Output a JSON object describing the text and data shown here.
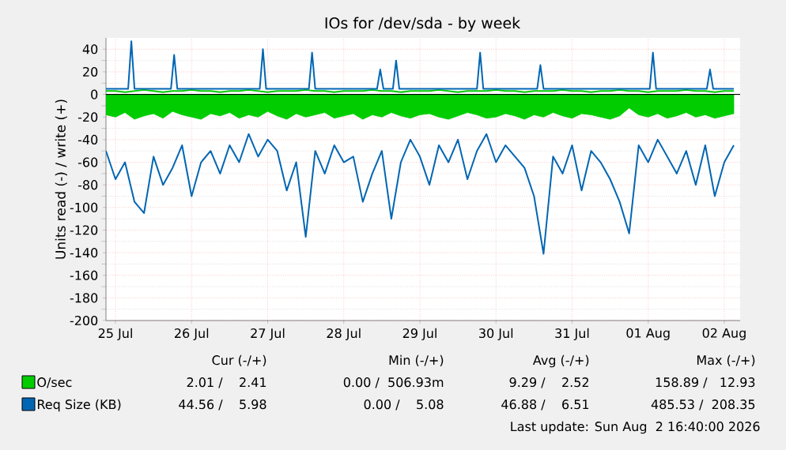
{
  "chart_data": {
    "type": "line",
    "title": "IOs for /dev/sda - by week",
    "ylabel": "Units read (-) / write (+)",
    "x": [
      "2026-07-25T09:00",
      "2026-07-25T12:00",
      "2026-07-25T15:00",
      "2026-07-25T18:00",
      "2026-07-25T21:00",
      "2026-07-26T00:00",
      "2026-07-26T03:00",
      "2026-07-26T06:00",
      "2026-07-26T09:00",
      "2026-07-26T12:00",
      "2026-07-26T15:00",
      "2026-07-26T18:00",
      "2026-07-26T21:00",
      "2026-07-27T00:00",
      "2026-07-27T03:00",
      "2026-07-27T06:00",
      "2026-07-27T09:00",
      "2026-07-27T12:00",
      "2026-07-27T15:00",
      "2026-07-27T18:00",
      "2026-07-27T21:00",
      "2026-07-28T00:00",
      "2026-07-28T03:00",
      "2026-07-28T06:00",
      "2026-07-28T09:00",
      "2026-07-28T12:00",
      "2026-07-28T15:00",
      "2026-07-28T18:00",
      "2026-07-28T21:00",
      "2026-07-29T00:00",
      "2026-07-29T03:00",
      "2026-07-29T06:00",
      "2026-07-29T09:00",
      "2026-07-29T12:00",
      "2026-07-29T15:00",
      "2026-07-29T18:00",
      "2026-07-29T21:00",
      "2026-07-30T00:00",
      "2026-07-30T03:00",
      "2026-07-30T06:00",
      "2026-07-30T09:00",
      "2026-07-30T12:00",
      "2026-07-30T15:00",
      "2026-07-30T18:00",
      "2026-07-30T21:00",
      "2026-07-31T00:00",
      "2026-07-31T03:00",
      "2026-07-31T06:00",
      "2026-07-31T09:00",
      "2026-07-31T12:00",
      "2026-07-31T15:00",
      "2026-07-31T18:00",
      "2026-07-31T21:00",
      "2026-08-01T00:00",
      "2026-08-01T03:00",
      "2026-08-01T06:00",
      "2026-08-01T09:00",
      "2026-08-01T12:00",
      "2026-08-01T15:00",
      "2026-08-01T18:00",
      "2026-08-01T21:00",
      "2026-08-02T00:00",
      "2026-08-02T03:00",
      "2026-08-02T06:00",
      "2026-08-02T09:00",
      "2026-08-02T12:00",
      "2026-08-02T15:00"
    ],
    "series": [
      {
        "name": "O/sec",
        "type": "area",
        "color": "#00cc00",
        "values": [
          -18,
          -20,
          -16,
          -22,
          -19,
          -17,
          -21,
          -15,
          -18,
          -20,
          -22,
          -17,
          -19,
          -16,
          -21,
          -18,
          -20,
          -15,
          -19,
          -22,
          -17,
          -20,
          -18,
          -16,
          -21,
          -19,
          -17,
          -22,
          -18,
          -20,
          -16,
          -19,
          -21,
          -18,
          -17,
          -20,
          -22,
          -19,
          -16,
          -18,
          -21,
          -20,
          -17,
          -19,
          -22,
          -18,
          -20,
          -16,
          -19,
          -21,
          -17,
          -18,
          -20,
          -22,
          -19,
          -12,
          -18,
          -20,
          -17,
          -21,
          -19,
          -16,
          -20,
          -18,
          -21,
          -19,
          -17
        ]
      },
      {
        "type": "line",
        "color": "#00cc00",
        "values": [
          3,
          3,
          2,
          3,
          4,
          3,
          2,
          3,
          3,
          4,
          3,
          3,
          2,
          3,
          3,
          4,
          3,
          2,
          3,
          3,
          3,
          4,
          3,
          3,
          2,
          3,
          3,
          3,
          4,
          3,
          3,
          2,
          3,
          3,
          3,
          4,
          3,
          2,
          3,
          3,
          3,
          4,
          3,
          3,
          2,
          3,
          3,
          3,
          4,
          3,
          3,
          2,
          3,
          3,
          4,
          3,
          3,
          2,
          3,
          3,
          3,
          4,
          3,
          3,
          2,
          3,
          3
        ]
      },
      {
        "name": "Req Size (KB)",
        "color": "#0066b3",
        "values": [
          -50,
          -75,
          -60,
          -95,
          -105,
          -55,
          -80,
          -65,
          -45,
          -90,
          -60,
          -50,
          -70,
          -45,
          -60,
          -35,
          -55,
          -40,
          -50,
          -85,
          -60,
          -126,
          -50,
          -70,
          -45,
          -60,
          -55,
          -95,
          -70,
          -50,
          -110,
          -60,
          -40,
          -55,
          -80,
          -45,
          -60,
          -40,
          -75,
          -50,
          -35,
          -60,
          -45,
          -55,
          -65,
          -90,
          -141,
          -55,
          -70,
          -45,
          -85,
          -50,
          -60,
          -75,
          -95,
          -123,
          -45,
          -60,
          -40,
          -55,
          -70,
          -50,
          -80,
          -45,
          -90,
          -60,
          -45
        ]
      },
      {
        "color": "#0066b3",
        "x": [
          "2026-07-25T09:00",
          "2026-07-25T16:00",
          "2026-07-25T17:00",
          "2026-07-25T18:00",
          "2026-07-26T05:30",
          "2026-07-26T06:30",
          "2026-07-26T07:30",
          "2026-07-27T09:30",
          "2026-07-27T10:30",
          "2026-07-27T11:30",
          "2026-07-28T01:00",
          "2026-07-28T02:00",
          "2026-07-28T03:00",
          "2026-07-28T22:30",
          "2026-07-28T23:30",
          "2026-07-29T00:30",
          "2026-07-29T03:30",
          "2026-07-29T04:30",
          "2026-07-29T05:30",
          "2026-07-30T06:00",
          "2026-07-30T07:00",
          "2026-07-30T08:00",
          "2026-07-31T01:00",
          "2026-07-31T02:00",
          "2026-07-31T03:00",
          "2026-08-01T12:30",
          "2026-08-01T13:30",
          "2026-08-01T14:30",
          "2026-08-02T06:30",
          "2026-08-02T07:30",
          "2026-08-02T08:30",
          "2026-08-02T15:00"
        ],
        "values": [
          5,
          5,
          47,
          5,
          5,
          35,
          5,
          5,
          40,
          5,
          5,
          37,
          5,
          5,
          22,
          5,
          5,
          30,
          5,
          5,
          37,
          5,
          5,
          26,
          5,
          5,
          37,
          5,
          5,
          22,
          5,
          5
        ]
      }
    ],
    "xlim": [
      "2026-07-25T09:00",
      "2026-08-02T17:00"
    ],
    "xticks": [
      {
        "value": "2026-07-25T12:00",
        "label": "25 Jul"
      },
      {
        "value": "2026-07-26T12:00",
        "label": "26 Jul"
      },
      {
        "value": "2026-07-27T12:00",
        "label": "27 Jul"
      },
      {
        "value": "2026-07-28T12:00",
        "label": "28 Jul"
      },
      {
        "value": "2026-07-29T12:00",
        "label": "29 Jul"
      },
      {
        "value": "2026-07-30T12:00",
        "label": "30 Jul"
      },
      {
        "value": "2026-07-31T12:00",
        "label": "31 Jul"
      },
      {
        "value": "2026-08-01T12:00",
        "label": "01 Aug"
      },
      {
        "value": "2026-08-02T12:00",
        "label": "02 Aug"
      }
    ],
    "ylim": [
      -200,
      50
    ],
    "yticks": [
      -200,
      -180,
      -160,
      -140,
      -120,
      -100,
      -80,
      -60,
      -40,
      -20,
      0,
      20,
      40
    ],
    "ref_lines": [
      {
        "axis": "y",
        "value": 0,
        "color": "#000000"
      }
    ],
    "grid": true,
    "legend": "bottom",
    "marker": "none",
    "line_style": "solid",
    "annotations": [
      "Cur (-/+)",
      "Min (-/+)",
      "Avg (-/+)",
      "Max (-/+)",
      "2.01 /    2.41",
      "0.00 /  506.93m",
      "9.29 /    2.52",
      "158.89 /   12.93",
      "44.56 /    5.98",
      "0.00 /    5.08",
      "46.88 /    6.51",
      "485.53 /  208.35",
      "Last update: Sun Aug  2 16:40:00 2026"
    ]
  }
}
